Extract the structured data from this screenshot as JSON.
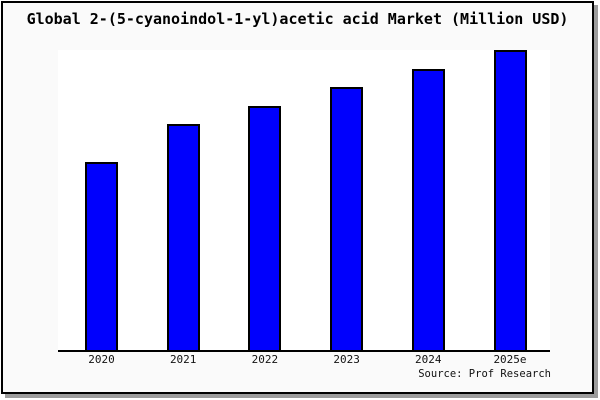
{
  "figure": {
    "background": "#fafafa",
    "border_color": "#000000",
    "shadow_color": "#9c9c9c"
  },
  "header": {
    "title": "Global 2-(5-cyanoindol-1-yl)acetic acid Market (Million USD)"
  },
  "footer": {
    "source_label": "Source: Prof Research"
  },
  "chart_data": {
    "type": "bar",
    "title": "Global 2-(5-cyanoindol-1-yl)acetic acid Market (Million USD)",
    "categories": [
      "2020",
      "2021",
      "2022",
      "2023",
      "2024",
      "2025e"
    ],
    "values": [
      62.8,
      75.3,
      81.3,
      87.6,
      93.5,
      100
    ],
    "value_note": "no y-axis ticks shown; values are relative bar heights indexed to 2025e = 100",
    "xlabel": "",
    "ylabel": "",
    "ylim": [
      0,
      100
    ],
    "grid": false,
    "legend": null,
    "bar_color": "#0000fd",
    "bar_border_color": "#000000",
    "source": "Source: Prof Research"
  }
}
